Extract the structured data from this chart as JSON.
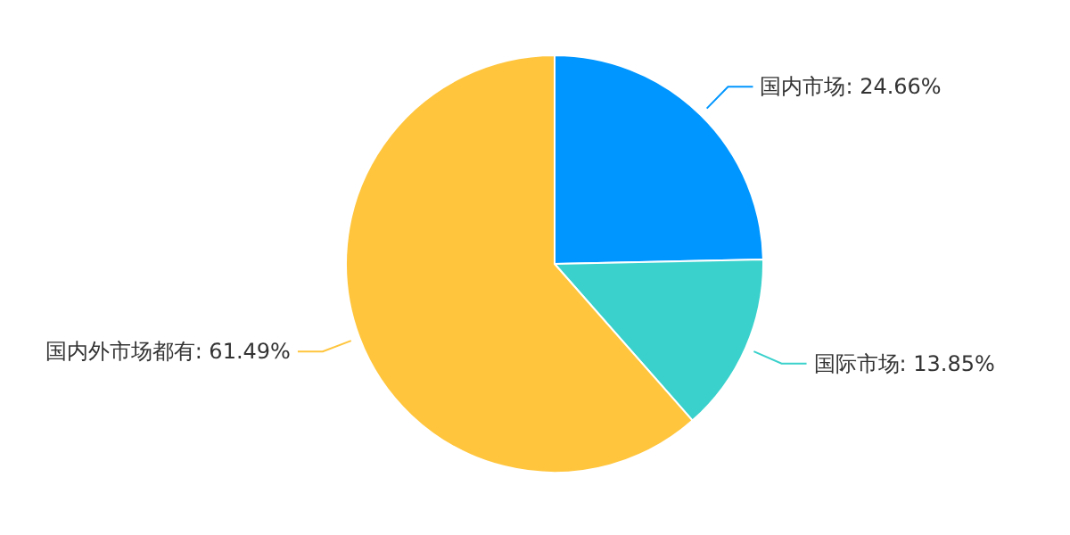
{
  "chart_data": {
    "type": "pie",
    "categories": [
      "国内市场",
      "国际市场",
      "国内外市场都有"
    ],
    "values": [
      24.66,
      13.85,
      61.49
    ],
    "colors": [
      "#0096ff",
      "#3ad1cc",
      "#ffc53d"
    ],
    "value_labels": [
      "24.66%",
      "13.85%",
      "61.49%"
    ]
  }
}
